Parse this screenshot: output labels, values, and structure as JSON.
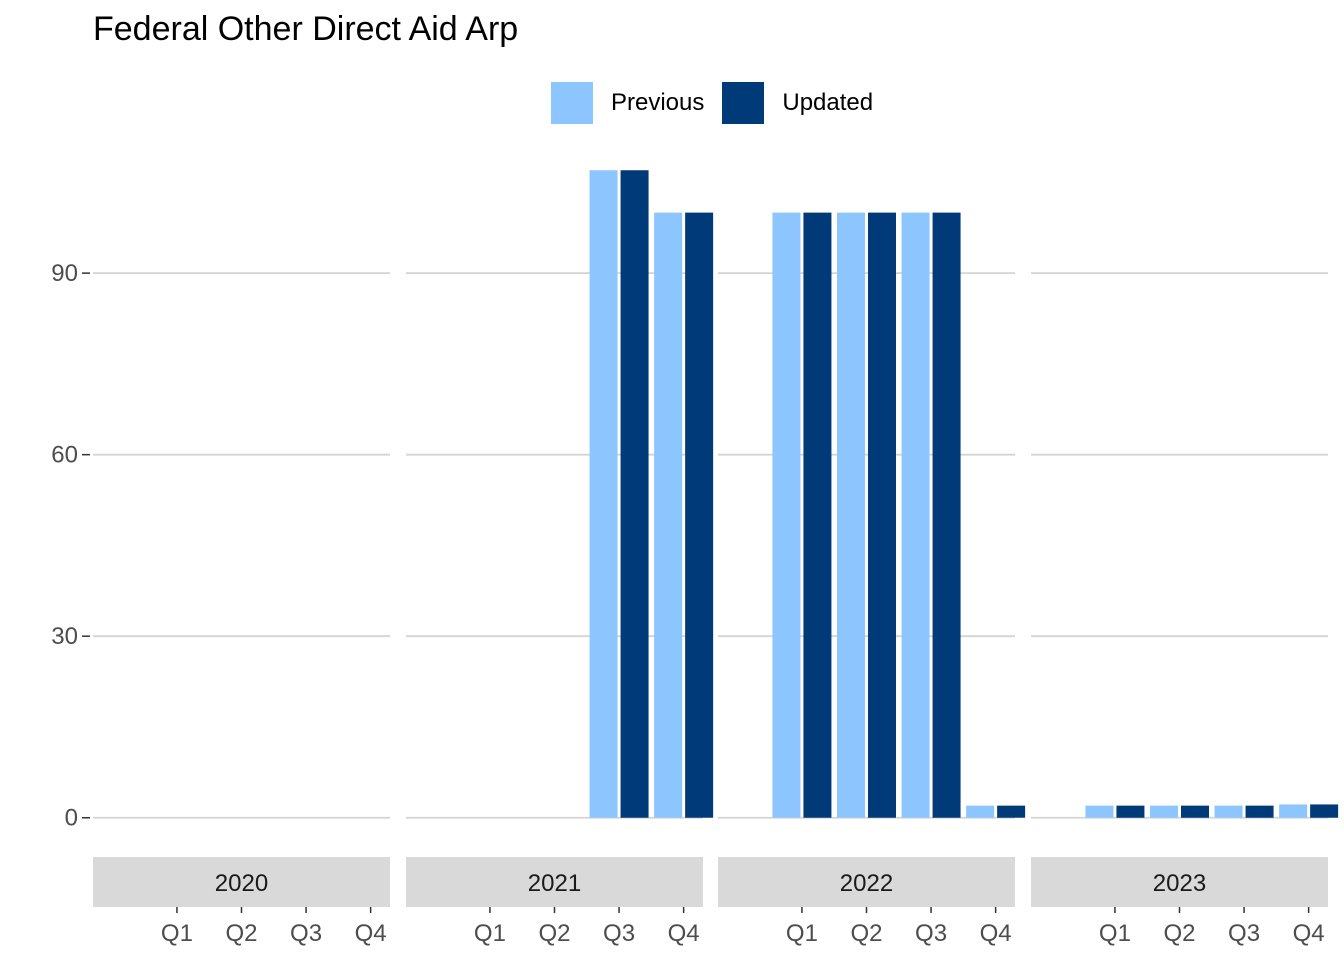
{
  "chart_data": {
    "type": "bar",
    "title": "Federal Other Direct Aid Arp",
    "xlabel": "",
    "ylabel": "",
    "ylim": [
      -5,
      112
    ],
    "yticks": [
      0,
      30,
      60,
      90
    ],
    "grid": true,
    "legend_position": "top",
    "colors": {
      "Previous": "#8DC6FF",
      "Updated": "#003A78"
    },
    "facets": [
      "2020",
      "2021",
      "2022",
      "2023"
    ],
    "categories": [
      "Q1",
      "Q2",
      "Q3",
      "Q4"
    ],
    "series": [
      {
        "name": "Previous",
        "values": [
          [
            null,
            null,
            null,
            null
          ],
          [
            0,
            0,
            107,
            100
          ],
          [
            100,
            100,
            100,
            2
          ],
          [
            2,
            2,
            2,
            2.2
          ]
        ]
      },
      {
        "name": "Updated",
        "values": [
          [
            null,
            null,
            null,
            null
          ],
          [
            0,
            0,
            107,
            100
          ],
          [
            100,
            100,
            100,
            2
          ],
          [
            2,
            2,
            2,
            2.2
          ]
        ]
      }
    ]
  }
}
